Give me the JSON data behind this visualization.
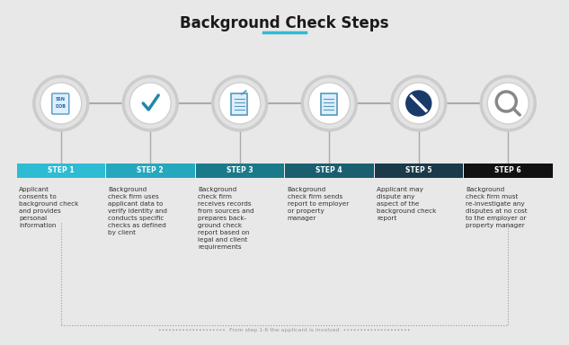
{
  "title": "Background Check Steps",
  "title_color": "#1a1a1a",
  "background_color": "#e8e8e8",
  "steps": [
    "STEP 1",
    "STEP 2",
    "STEP 3",
    "STEP 4",
    "STEP 5",
    "STEP 6"
  ],
  "step_colors": [
    "#2dbcd4",
    "#25a8be",
    "#1a7a8a",
    "#1a5f70",
    "#1a3a4a",
    "#111111"
  ],
  "step_texts": [
    "Applicant\nconsents to\nbackground check\nand provides\npersonal\ninformation",
    "Background\ncheck firm uses\napplicant data to\nverify identity and\nconducts specific\nchecks as defined\nby client",
    "Background\ncheck firm\nreceives records\nfrom sources and\nprepares back-\nground check\nreport based on\nlegal and client\nrequirements",
    "Background\ncheck firm sends\nreport to employer\nor property\nmanager",
    "Applicant may\ndispute any\naspect of the\nbackground check\nreport",
    "Background\ncheck firm must\nre-investigate any\ndisputes at no cost\nto the employer or\nproperty manager"
  ],
  "bottom_text": "From step 1-6 the applicant is involved",
  "connector_color": "#aaaaaa",
  "dashed_line_color": "#999999",
  "text_color": "#333333",
  "step_label_color": "#ffffff",
  "title_underline_color": "#2dbcd4",
  "num_steps": 6
}
